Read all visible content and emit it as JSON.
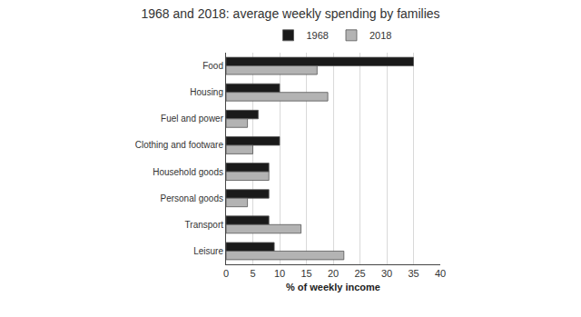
{
  "chart_data": {
    "type": "bar",
    "orientation": "horizontal",
    "title": "1968 and 2018: average weekly spending by families",
    "x_label": "% of weekly income",
    "categories": [
      "Food",
      "Housing",
      "Fuel and power",
      "Clothing and footware",
      "Household goods",
      "Personal goods",
      "Transport",
      "Leisure"
    ],
    "series": [
      {
        "name": "1968",
        "color": "#1a1a1a",
        "values": [
          35,
          10,
          6,
          10,
          8,
          8,
          8,
          9
        ]
      },
      {
        "name": "2018",
        "color": "#b3b3b3",
        "values": [
          17,
          19,
          4,
          5,
          8,
          4,
          14,
          22
        ]
      }
    ],
    "xlim": [
      0,
      40
    ],
    "xticks": [
      0,
      5,
      10,
      15,
      20,
      25,
      30,
      35,
      40
    ],
    "grid": true,
    "legend": "top"
  }
}
